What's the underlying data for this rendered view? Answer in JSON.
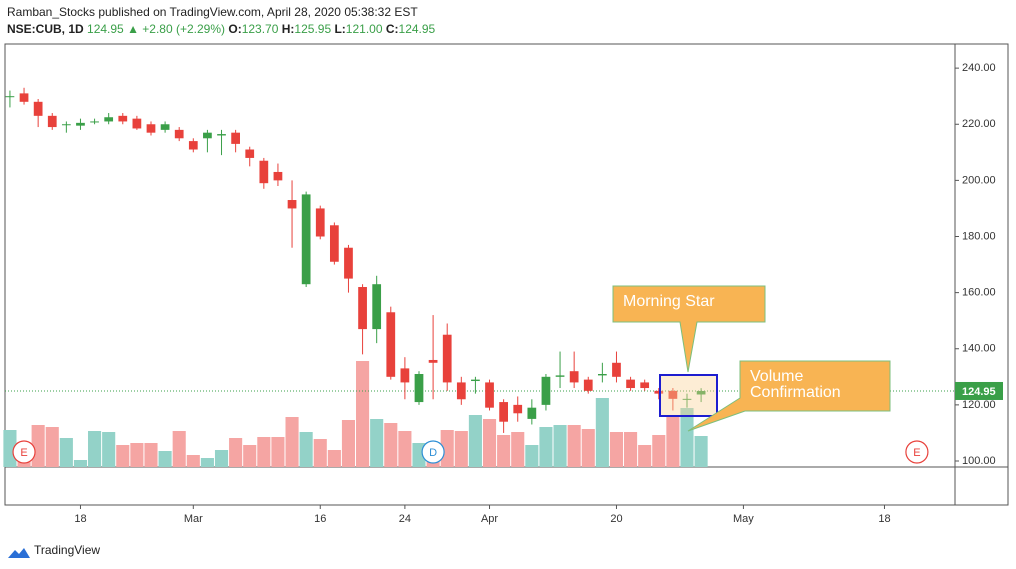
{
  "header": {
    "published": "Ramban_Stocks published on TradingView.com, April 28, 2020 05:38:32 EST",
    "symbol": "NSE:CUB, 1D",
    "last": "124.95",
    "change": "▲ +2.80 (+2.29%)",
    "open_label": "O:",
    "open": "123.70",
    "high_label": "H:",
    "high": "125.95",
    "low_label": "L:",
    "low": "121.00",
    "close_label": "C:",
    "close": "124.95"
  },
  "chart_data": {
    "type": "candlestick",
    "grid": false,
    "up_color": "#3a9f48",
    "down_color": "#e8413b",
    "volume_up_color": "#93d2c8",
    "volume_down_color": "#f5a5a3",
    "candles": {
      "open": [
        230,
        231,
        228,
        223,
        220,
        219.5,
        221,
        221,
        223,
        222,
        220,
        218,
        218,
        214,
        215,
        216,
        217,
        211,
        207,
        203,
        193,
        163,
        190,
        184,
        176,
        162,
        147,
        153,
        133,
        121,
        136,
        145,
        128,
        128.5,
        128,
        121,
        120,
        115,
        120,
        130,
        132,
        129,
        130.5,
        135,
        129,
        128,
        125,
        125,
        122,
        123.7
      ],
      "high": [
        232,
        233,
        229,
        224,
        221,
        222,
        222,
        224,
        224,
        223,
        221,
        221,
        219,
        215,
        218,
        218,
        218,
        212,
        208,
        206,
        200,
        196,
        191,
        185,
        177,
        163,
        166,
        155,
        137,
        132,
        152,
        149,
        130,
        130,
        129,
        122,
        123,
        122,
        131,
        139,
        139,
        130,
        135,
        139,
        130,
        129,
        126,
        126,
        124,
        125.95
      ],
      "low": [
        226,
        227,
        219,
        218,
        217,
        218,
        220,
        220,
        220,
        218,
        216,
        217,
        214,
        210,
        210,
        209,
        210,
        205,
        197,
        198,
        176,
        162,
        179,
        170,
        160,
        138,
        142,
        129,
        122,
        120,
        122,
        125,
        120,
        124,
        118,
        110,
        114,
        113,
        118,
        126,
        126,
        124,
        128,
        128,
        125,
        125,
        122,
        118,
        119,
        121
      ],
      "close": [
        230,
        228,
        223,
        219,
        220,
        220.5,
        221,
        222.5,
        221,
        218.5,
        217,
        220,
        215,
        211,
        217,
        216.5,
        213,
        208,
        199,
        200,
        190,
        195,
        180,
        171,
        165,
        147,
        163,
        130,
        128,
        131,
        135,
        128,
        122,
        129,
        119,
        114,
        117,
        119,
        130,
        130.5,
        128,
        125,
        131,
        130,
        126,
        126,
        124,
        122.15,
        122.15,
        124.95
      ]
    },
    "volume": {
      "values": [
        37,
        15,
        42,
        40,
        29,
        7,
        36,
        35,
        22,
        24,
        24,
        16,
        36,
        12,
        9,
        17,
        29,
        22,
        30,
        30,
        50,
        35,
        28,
        17,
        47,
        106,
        48,
        44,
        36,
        24,
        22,
        37,
        36,
        52,
        48,
        32,
        35,
        22,
        40,
        42,
        42,
        38,
        69,
        35,
        35,
        22,
        32,
        52,
        59,
        31
      ]
    },
    "xlim": [
      -0.35,
      67
    ],
    "xticks": [
      {
        "value": 5,
        "label": "18"
      },
      {
        "value": 13,
        "label": "Mar"
      },
      {
        "value": 22,
        "label": "16"
      },
      {
        "value": 28,
        "label": "24"
      },
      {
        "value": 34,
        "label": "Apr"
      },
      {
        "value": 43,
        "label": "20"
      },
      {
        "value": 52,
        "label": "May"
      },
      {
        "value": 62,
        "label": "18"
      }
    ],
    "ylim": [
      97.86,
      248.6
    ],
    "yticks": [
      {
        "value": 100,
        "label": "100.00"
      },
      {
        "value": 120,
        "label": "120.00"
      },
      {
        "value": 140,
        "label": "140.00"
      },
      {
        "value": 160,
        "label": "160.00"
      },
      {
        "value": 180,
        "label": "180.00"
      },
      {
        "value": 200,
        "label": "200.00"
      },
      {
        "value": 220,
        "label": "220.00"
      },
      {
        "value": 240,
        "label": "240.00"
      }
    ],
    "last_price": {
      "value": 124.95,
      "label": "124.95",
      "color": "#3a9f48"
    },
    "events": [
      {
        "label": "E",
        "x": 1,
        "color": "#e8413b"
      },
      {
        "label": "D",
        "x": 30,
        "color": "#2e8fd6"
      },
      {
        "label": "E",
        "x": 64.3,
        "color": "#e8413b"
      }
    ],
    "annotations": [
      "Morning Star",
      "Volume Confirmation"
    ]
  },
  "footer": "TradingView"
}
